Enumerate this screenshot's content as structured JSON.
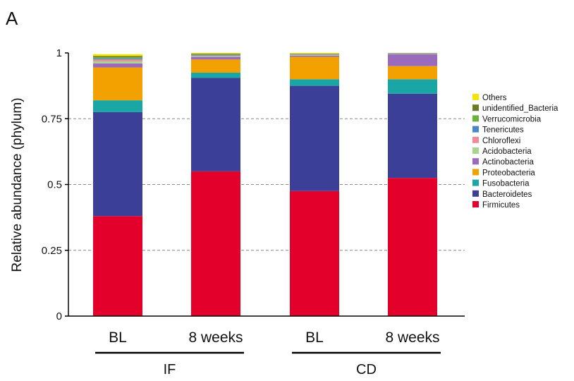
{
  "chart_data": {
    "type": "bar",
    "stacked": true,
    "panel_label": "A",
    "ylabel": "Relative abundance (phylum)",
    "ylim": [
      0,
      1
    ],
    "yticks": [
      0,
      0.25,
      0.5,
      0.75,
      1
    ],
    "ytick_labels": [
      "0",
      "0.25",
      "0.5",
      "0.75",
      "1"
    ],
    "grid": "horizontal dashed",
    "legend_position": "right",
    "categories": [
      "BL",
      "8 weeks",
      "BL",
      "8 weeks"
    ],
    "groups": [
      {
        "label": "IF",
        "category_indices": [
          0,
          1
        ]
      },
      {
        "label": "CD",
        "category_indices": [
          2,
          3
        ]
      }
    ],
    "series": [
      {
        "name": "Firmicutes",
        "color": "#e3002b",
        "values": [
          0.38,
          0.55,
          0.475,
          0.525
        ]
      },
      {
        "name": "Bacteroidetes",
        "color": "#3c3f97",
        "values": [
          0.395,
          0.355,
          0.4,
          0.32
        ]
      },
      {
        "name": "Fusobacteria",
        "color": "#1aa6a4",
        "values": [
          0.045,
          0.02,
          0.025,
          0.055
        ]
      },
      {
        "name": "Proteobacteria",
        "color": "#f2a100",
        "values": [
          0.125,
          0.05,
          0.085,
          0.05
        ]
      },
      {
        "name": "Actinobacteria",
        "color": "#9a6bbd",
        "values": [
          0.015,
          0.01,
          0.005,
          0.045
        ]
      },
      {
        "name": "Acidobacteria",
        "color": "#a6d68c",
        "values": [
          0.008,
          0.003,
          0.002,
          0.001
        ]
      },
      {
        "name": "Chloroflexi",
        "color": "#f08a9a",
        "values": [
          0.007,
          0.002,
          0.001,
          0.001
        ]
      },
      {
        "name": "Tenericutes",
        "color": "#4a86c8",
        "values": [
          0.004,
          0.002,
          0.001,
          0.001
        ]
      },
      {
        "name": "Verrucomicrobia",
        "color": "#6ab23a",
        "values": [
          0.004,
          0.002,
          0.001,
          0.001
        ]
      },
      {
        "name": "unidentified_Bacteria",
        "color": "#6b7a24",
        "values": [
          0.005,
          0.003,
          0.002,
          0.001
        ]
      },
      {
        "name": "Others",
        "color": "#f5e400",
        "values": [
          0.007,
          0.003,
          0.003,
          0.0
        ]
      }
    ]
  },
  "legend_order": [
    "Others",
    "unidentified_Bacteria",
    "Verrucomicrobia",
    "Tenericutes",
    "Chloroflexi",
    "Acidobacteria",
    "Actinobacteria",
    "Proteobacteria",
    "Fusobacteria",
    "Bacteroidetes",
    "Firmicutes"
  ]
}
